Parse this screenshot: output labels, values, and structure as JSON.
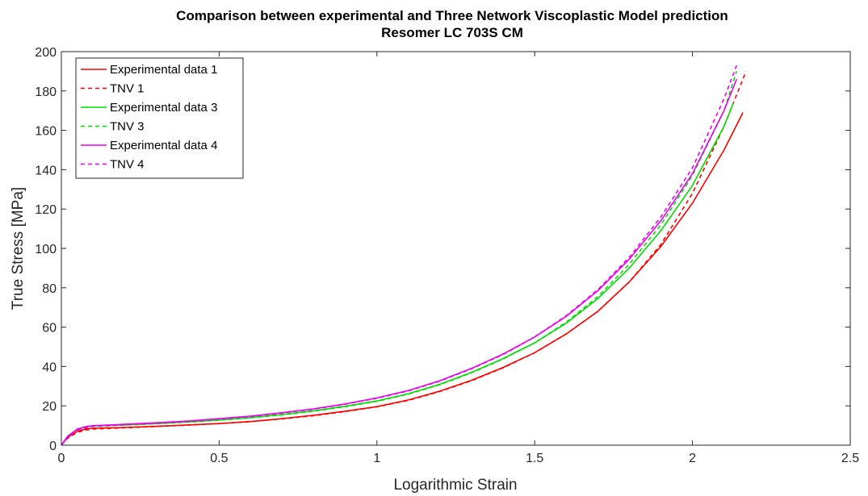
{
  "chart_data": {
    "type": "line",
    "title": "Comparison between experimental and Three Network Viscoplastic Model prediction",
    "subtitle": "Resomer LC 703S CM",
    "xlabel": "Logarithmic Strain",
    "ylabel": "True Stress [MPa]",
    "xlim": [
      0,
      2.5
    ],
    "ylim": [
      0,
      200
    ],
    "xticks": [
      0,
      0.5,
      1,
      1.5,
      2,
      2.5
    ],
    "xtick_labels": [
      "0",
      "0.5",
      "1",
      "1.5",
      "2",
      "2.5"
    ],
    "yticks": [
      0,
      20,
      40,
      60,
      80,
      100,
      120,
      140,
      160,
      180,
      200
    ],
    "ytick_labels": [
      "0",
      "20",
      "40",
      "60",
      "80",
      "100",
      "120",
      "140",
      "160",
      "180",
      "200"
    ],
    "grid": false,
    "legend_position": "top-left",
    "series": [
      {
        "name": "Experimental data 1",
        "color": "#ff0000",
        "style": "solid",
        "x": [
          0,
          0.02,
          0.05,
          0.08,
          0.1,
          0.2,
          0.3,
          0.4,
          0.5,
          0.6,
          0.7,
          0.8,
          0.9,
          1.0,
          1.1,
          1.2,
          1.3,
          1.4,
          1.5,
          1.6,
          1.7,
          1.8,
          1.9,
          2.0,
          2.1,
          2.16
        ],
        "y": [
          0,
          4,
          7,
          8.3,
          8.6,
          9,
          9.6,
          10.3,
          11,
          12,
          13.5,
          15.2,
          17.3,
          19.6,
          23,
          27.5,
          33,
          39.5,
          47,
          56.5,
          68,
          83,
          101,
          123,
          150,
          169
        ]
      },
      {
        "name": "TNV 1",
        "color": "#ff0000",
        "style": "dashed",
        "x": [
          0,
          0.02,
          0.05,
          0.08,
          0.1,
          0.2,
          0.3,
          0.4,
          0.5,
          0.6,
          0.7,
          0.8,
          0.9,
          1.0,
          1.1,
          1.2,
          1.3,
          1.4,
          1.5,
          1.6,
          1.7,
          1.8,
          1.9,
          2.0,
          2.1,
          2.17
        ],
        "y": [
          0,
          3.5,
          6.5,
          7.8,
          8.2,
          8.8,
          9.5,
          10.2,
          11,
          12,
          13.4,
          15,
          17.1,
          19.5,
          22.8,
          27.3,
          32.8,
          39.3,
          47,
          56.5,
          68,
          83,
          102,
          128,
          162,
          190
        ]
      },
      {
        "name": "Experimental data 3",
        "color": "#00dd00",
        "style": "solid",
        "x": [
          0,
          0.02,
          0.05,
          0.08,
          0.1,
          0.2,
          0.3,
          0.4,
          0.5,
          0.6,
          0.7,
          0.8,
          0.9,
          1.0,
          1.1,
          1.2,
          1.3,
          1.4,
          1.5,
          1.6,
          1.7,
          1.8,
          1.9,
          2.0,
          2.1,
          2.13
        ],
        "y": [
          0,
          4.5,
          8,
          9.5,
          9.8,
          10.3,
          11,
          11.8,
          12.8,
          14,
          15.6,
          17.5,
          19.8,
          22.5,
          26.2,
          31,
          37,
          44,
          52,
          62,
          74.5,
          90,
          109,
          132,
          162,
          174
        ]
      },
      {
        "name": "TNV 3",
        "color": "#00dd00",
        "style": "dashed",
        "x": [
          0,
          0.02,
          0.05,
          0.08,
          0.1,
          0.2,
          0.3,
          0.4,
          0.5,
          0.6,
          0.7,
          0.8,
          0.9,
          1.0,
          1.1,
          1.2,
          1.3,
          1.4,
          1.5,
          1.6,
          1.7,
          1.8,
          1.9,
          2.0,
          2.1,
          2.14
        ],
        "y": [
          0,
          4,
          7.5,
          9,
          9.5,
          10.2,
          10.9,
          11.7,
          12.7,
          13.9,
          15.4,
          17.3,
          19.6,
          22.3,
          26,
          30.8,
          36.8,
          43.8,
          52,
          62.5,
          75.5,
          92,
          112,
          137,
          170,
          190
        ]
      },
      {
        "name": "Experimental data 4",
        "color": "#ee00ee",
        "style": "solid",
        "x": [
          0,
          0.02,
          0.05,
          0.08,
          0.1,
          0.2,
          0.3,
          0.4,
          0.5,
          0.6,
          0.7,
          0.8,
          0.9,
          1.0,
          1.1,
          1.2,
          1.3,
          1.4,
          1.5,
          1.6,
          1.7,
          1.8,
          1.9,
          2.0,
          2.1,
          2.14
        ],
        "y": [
          0,
          4.5,
          8.2,
          9.5,
          9.9,
          10.6,
          11.4,
          12.3,
          13.5,
          14.8,
          16.5,
          18.5,
          21,
          24,
          27.8,
          32.8,
          39,
          46.3,
          55,
          65.5,
          78.5,
          94.5,
          114,
          138,
          170,
          186
        ]
      },
      {
        "name": "TNV 4",
        "color": "#ee00ee",
        "style": "dashed",
        "x": [
          0,
          0.02,
          0.05,
          0.08,
          0.1,
          0.2,
          0.3,
          0.4,
          0.5,
          0.6,
          0.7,
          0.8,
          0.9,
          1.0,
          1.1,
          1.2,
          1.3,
          1.4,
          1.5,
          1.6,
          1.7,
          1.8,
          1.9,
          2.0,
          2.1,
          2.14
        ],
        "y": [
          0,
          4,
          7.6,
          9.1,
          9.6,
          10.4,
          11.2,
          12.1,
          13.3,
          14.6,
          16.3,
          18.3,
          20.8,
          23.8,
          27.6,
          32.6,
          38.8,
          46.1,
          55,
          65.8,
          79,
          95.5,
          116,
          141,
          176,
          193
        ]
      }
    ]
  }
}
